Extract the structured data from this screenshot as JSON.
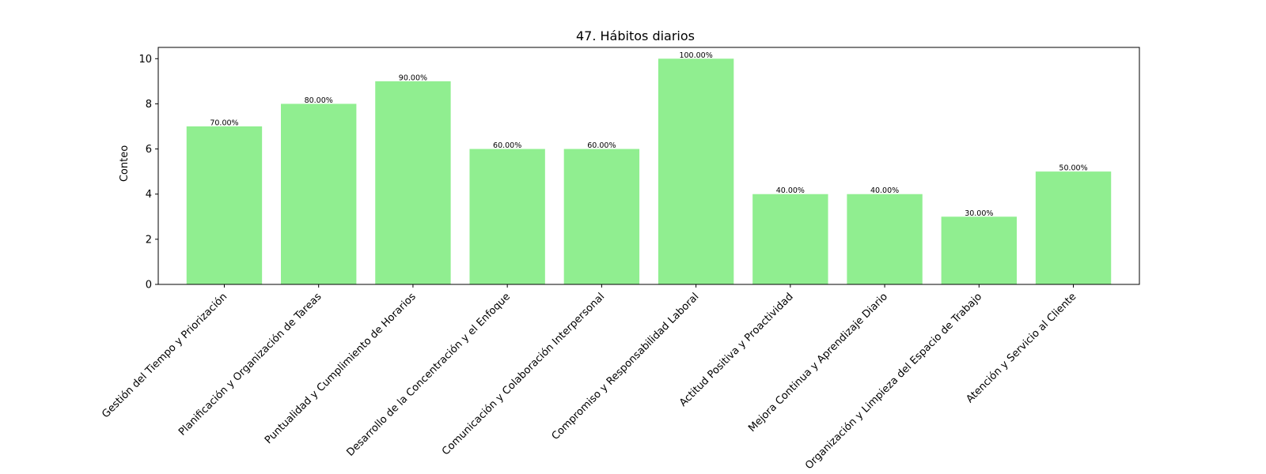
{
  "chart_data": {
    "type": "bar",
    "title": "47. Hábitos diarios",
    "xlabel": "",
    "ylabel": "Conteo",
    "ylim": [
      0,
      10.5
    ],
    "yticks": [
      0,
      2,
      4,
      6,
      8,
      10
    ],
    "grid": false,
    "legend": "none",
    "bar_color": "#90ee90",
    "categories": [
      "Gestión del Tiempo y Priorización",
      "Planificación y Organización de Tareas",
      "Puntualidad y Cumplimiento de Horarios",
      "Desarrollo de la Concentración y el Enfoque",
      "Comunicación y Colaboración Interpersonal",
      "Compromiso y Responsabilidad Laboral",
      "Actitud Positiva y Proactividad",
      "Mejora Continua y Aprendizaje Diario",
      "Organización y Limpieza del Espacio de Trabajo",
      "Atención y Servicio al Cliente"
    ],
    "values": [
      7,
      8,
      9,
      6,
      6,
      10,
      4,
      4,
      3,
      5
    ],
    "data_labels": [
      "70.00%",
      "80.00%",
      "90.00%",
      "60.00%",
      "60.00%",
      "100.00%",
      "40.00%",
      "40.00%",
      "30.00%",
      "50.00%"
    ]
  }
}
